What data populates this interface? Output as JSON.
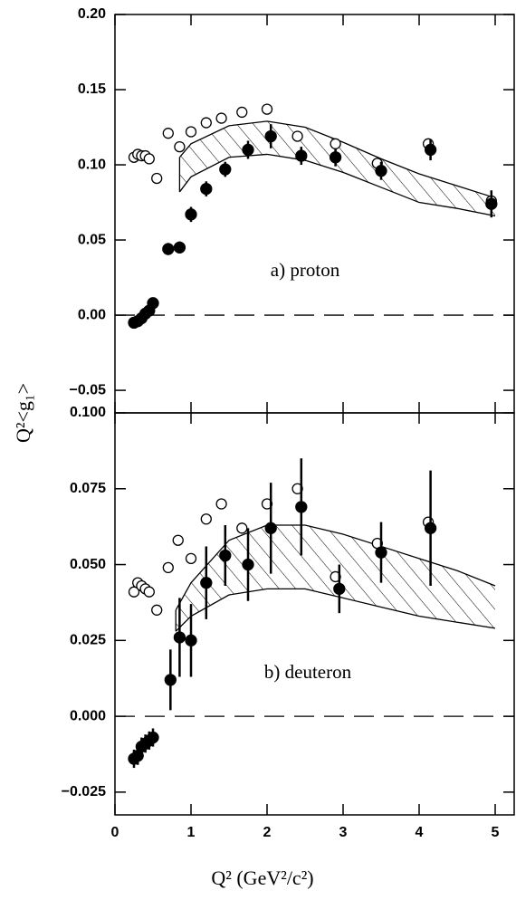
{
  "chart_data": [
    {
      "type": "scatter",
      "annotation": "a) proton",
      "y_label": "Q²<g₁>",
      "xlim": [
        0,
        5.25
      ],
      "xticks": [
        0,
        1,
        2,
        3,
        4,
        5
      ],
      "ylim": [
        -0.065,
        0.2
      ],
      "yticks": [
        {
          "value": 0.2,
          "label": "0.20"
        },
        {
          "value": 0.15,
          "label": "0.15"
        },
        {
          "value": 0.1,
          "label": "0.10"
        },
        {
          "value": 0.05,
          "label": "0.05"
        },
        {
          "value": 0,
          "label": "0.00"
        },
        {
          "value": -0.05,
          "label": "−0.05"
        }
      ],
      "hline": 0,
      "series": [
        {
          "marker": "open",
          "color": "#000000",
          "x": [
            0.25,
            0.3,
            0.35,
            0.4,
            0.45,
            0.55,
            0.7,
            0.85,
            1.0,
            1.2,
            1.4,
            1.67,
            2.0,
            2.4,
            2.9,
            3.45,
            4.12,
            4.95
          ],
          "values": [
            0.105,
            0.107,
            0.106,
            0.106,
            0.104,
            0.091,
            0.121,
            0.112,
            0.122,
            0.128,
            0.131,
            0.135,
            0.137,
            0.119,
            0.114,
            0.101,
            0.114,
            0.076
          ]
        },
        {
          "marker": "filled",
          "color": "#000000",
          "x": [
            0.25,
            0.3,
            0.35,
            0.4,
            0.45,
            0.5,
            0.7,
            0.85,
            1.0,
            1.2,
            1.45,
            1.75,
            2.05,
            2.45,
            2.9,
            3.5,
            4.15,
            4.95
          ],
          "values": [
            -0.005,
            -0.004,
            -0.002,
            0.001,
            0.003,
            0.008,
            0.044,
            0.045,
            0.067,
            0.084,
            0.097,
            0.11,
            0.119,
            0.106,
            0.105,
            0.096,
            0.11,
            0.074
          ],
          "errors": [
            0.003,
            0.003,
            0.003,
            0.003,
            0.003,
            0.003,
            0.004,
            0.004,
            0.005,
            0.005,
            0.005,
            0.006,
            0.008,
            0.006,
            0.006,
            0.006,
            0.007,
            0.009
          ]
        }
      ],
      "band": {
        "x": [
          0.85,
          1.0,
          1.5,
          2.0,
          2.5,
          3.0,
          3.5,
          4.0,
          4.5,
          5.0
        ],
        "upper": [
          0.105,
          0.114,
          0.126,
          0.129,
          0.125,
          0.115,
          0.104,
          0.094,
          0.086,
          0.078
        ],
        "lower": [
          0.082,
          0.092,
          0.105,
          0.107,
          0.103,
          0.095,
          0.085,
          0.075,
          0.071,
          0.066
        ]
      }
    },
    {
      "type": "scatter",
      "annotation": "b) deuteron",
      "x_label": "Q² (GeV²/c²)",
      "xlim": [
        0,
        5.25
      ],
      "xticks": [
        0,
        1,
        2,
        3,
        4,
        5
      ],
      "ylim": [
        -0.0325,
        0.1
      ],
      "yticks": [
        {
          "value": 0.1,
          "label": "0.100"
        },
        {
          "value": 0.075,
          "label": "0.075"
        },
        {
          "value": 0.05,
          "label": "0.050"
        },
        {
          "value": 0.025,
          "label": "0.025"
        },
        {
          "value": 0,
          "label": "0.000"
        },
        {
          "value": -0.025,
          "label": "−0.025"
        }
      ],
      "hline": 0,
      "series": [
        {
          "marker": "open",
          "color": "#000000",
          "x": [
            0.25,
            0.3,
            0.35,
            0.4,
            0.45,
            0.55,
            0.7,
            0.83,
            1.0,
            1.2,
            1.4,
            1.67,
            2.0,
            2.4,
            2.9,
            3.45,
            4.12
          ],
          "values": [
            0.041,
            0.044,
            0.043,
            0.042,
            0.041,
            0.035,
            0.049,
            0.058,
            0.052,
            0.065,
            0.07,
            0.062,
            0.07,
            0.075,
            0.046,
            0.057,
            0.064
          ]
        },
        {
          "marker": "filled",
          "color": "#000000",
          "x": [
            0.25,
            0.3,
            0.35,
            0.4,
            0.45,
            0.5,
            0.73,
            0.85,
            1.0,
            1.2,
            1.45,
            1.75,
            2.05,
            2.45,
            2.95,
            3.5,
            4.15
          ],
          "values": [
            -0.014,
            -0.013,
            -0.01,
            -0.009,
            -0.008,
            -0.007,
            0.012,
            0.026,
            0.025,
            0.044,
            0.053,
            0.05,
            0.062,
            0.069,
            0.042,
            0.054,
            0.062
          ],
          "errors": [
            0.003,
            0.003,
            0.003,
            0.003,
            0.003,
            0.003,
            0.01,
            0.013,
            0.012,
            0.012,
            0.01,
            0.012,
            0.015,
            0.016,
            0.008,
            0.01,
            0.019
          ]
        }
      ],
      "band": {
        "x": [
          0.8,
          1.0,
          1.5,
          2.0,
          2.5,
          3.0,
          3.5,
          4.0,
          4.5,
          5.0
        ],
        "upper": [
          0.035,
          0.044,
          0.058,
          0.063,
          0.063,
          0.06,
          0.056,
          0.052,
          0.048,
          0.043
        ],
        "lower": [
          0.028,
          0.033,
          0.04,
          0.042,
          0.042,
          0.039,
          0.036,
          0.033,
          0.031,
          0.029
        ]
      }
    }
  ]
}
